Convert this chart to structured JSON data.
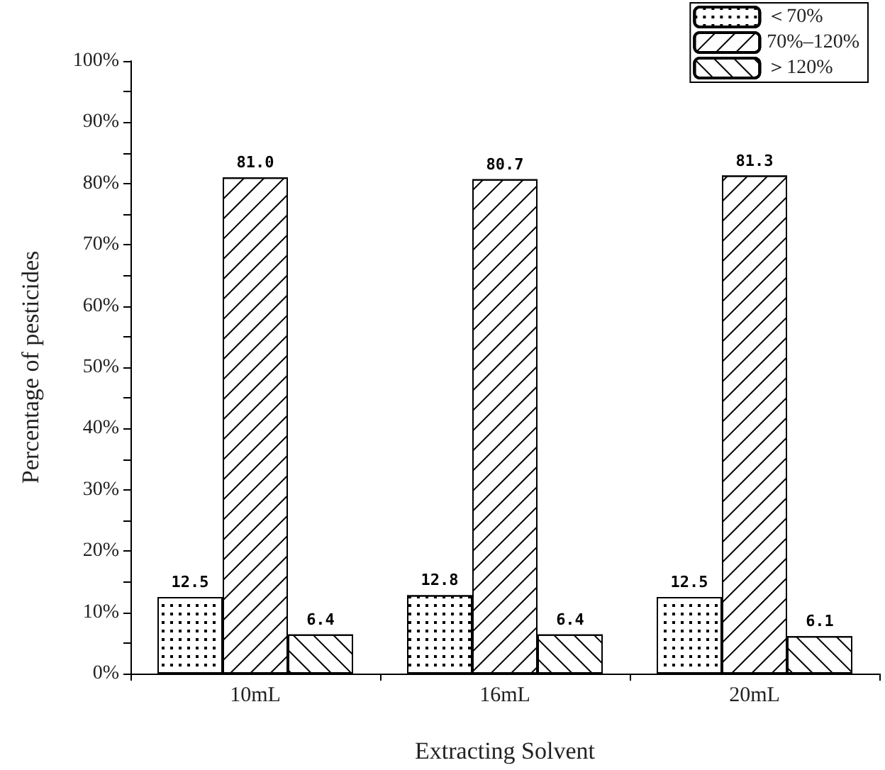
{
  "chart_data": {
    "type": "bar",
    "xlabel": "Extracting Solvent",
    "ylabel": "Percentage of pesticides",
    "categories": [
      "10mL",
      "16mL",
      "20mL"
    ],
    "series": [
      {
        "name": "＜70%",
        "color": "#ffffff",
        "values": [
          12.5,
          12.8,
          12.5
        ],
        "value_labels": [
          "12.5",
          "12.8",
          "12.5"
        ]
      },
      {
        "name": "70%–120%",
        "color": "#ffffff",
        "values": [
          81.0,
          80.7,
          81.3
        ],
        "value_labels": [
          "81.0",
          "80.7",
          "81.3"
        ]
      },
      {
        "name": "＞120%",
        "color": "#ffffff",
        "values": [
          6.4,
          6.4,
          6.1
        ],
        "value_labels": [
          "6.4",
          "6.4",
          "6.1"
        ]
      }
    ],
    "ylim": [
      0,
      100
    ],
    "yticks": [
      {
        "value": 0,
        "label": "0%"
      },
      {
        "value": 5,
        "label": null
      },
      {
        "value": 10,
        "label": "10%"
      },
      {
        "value": 15,
        "label": null
      },
      {
        "value": 20,
        "label": "20%"
      },
      {
        "value": 25,
        "label": null
      },
      {
        "value": 30,
        "label": "30%"
      },
      {
        "value": 35,
        "label": null
      },
      {
        "value": 40,
        "label": "40%"
      },
      {
        "value": 45,
        "label": null
      },
      {
        "value": 50,
        "label": "50%"
      },
      {
        "value": 55,
        "label": null
      },
      {
        "value": 60,
        "label": "60%"
      },
      {
        "value": 65,
        "label": null
      },
      {
        "value": 70,
        "label": "70%"
      },
      {
        "value": 75,
        "label": null
      },
      {
        "value": 80,
        "label": "80%"
      },
      {
        "value": 85,
        "label": null
      },
      {
        "value": 90,
        "label": "90%"
      },
      {
        "value": 95,
        "label": null
      },
      {
        "value": 100,
        "label": "100%"
      }
    ],
    "legend": "top right",
    "grid": false
  }
}
